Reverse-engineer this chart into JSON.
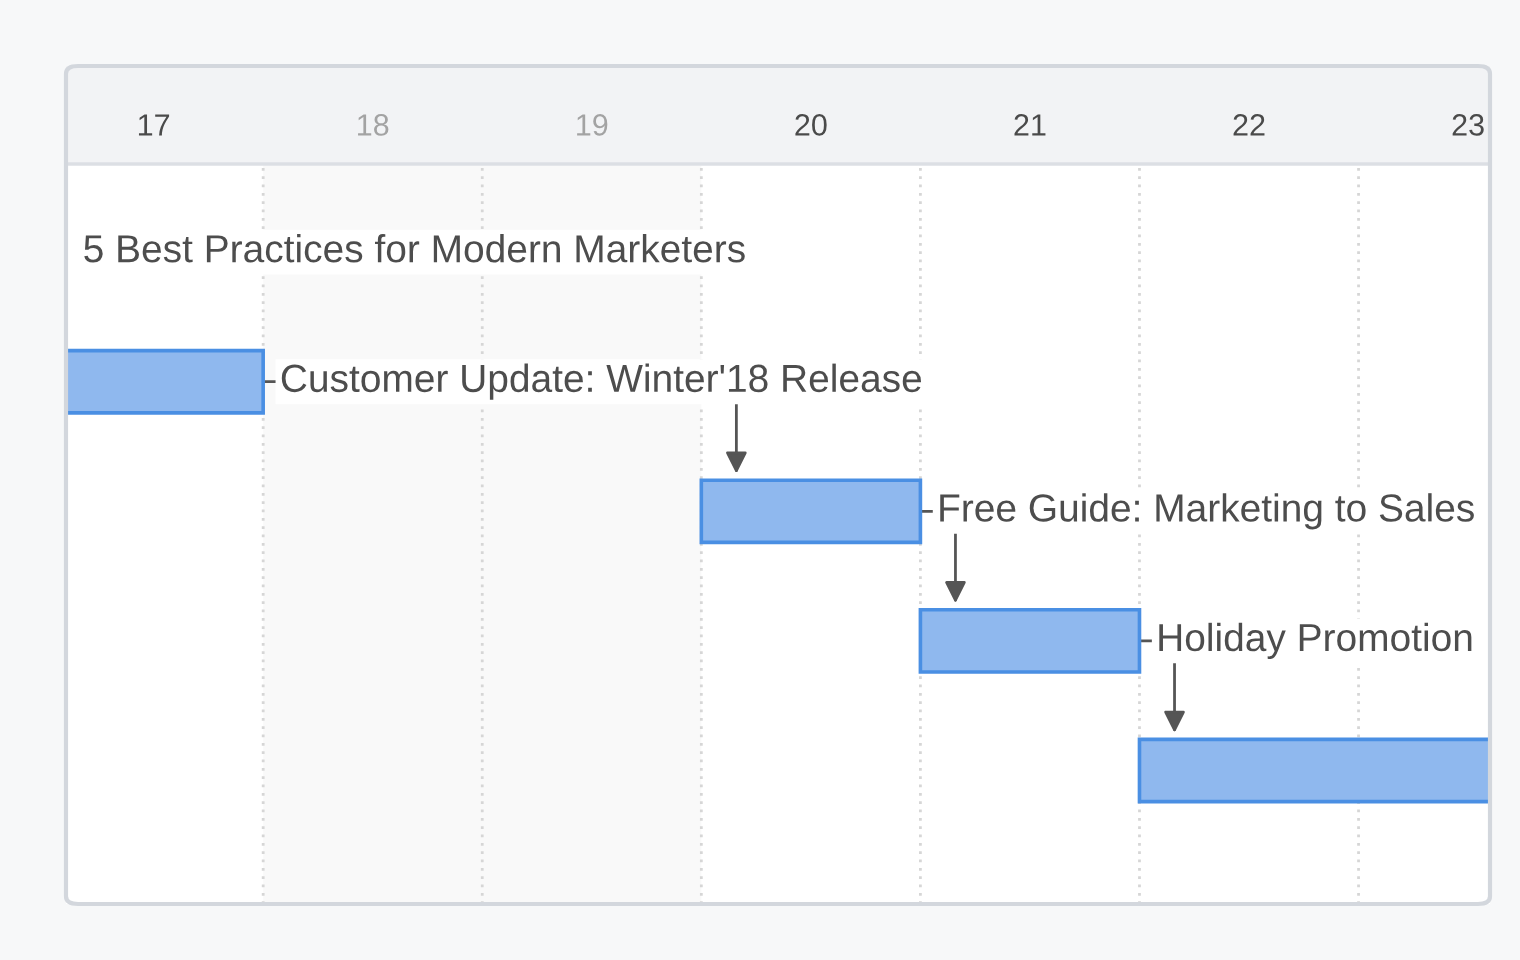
{
  "chart_data": {
    "type": "bar",
    "orientation": "horizontal",
    "categories": [
      "5 Best Practices for Modern Marketers",
      "Customer Update: Winter'18 Release",
      "Free Guide: Marketing to Sales",
      "Holiday Promotion",
      null
    ],
    "base": [
      null,
      16.6,
      19.5,
      20.5,
      21.5
    ],
    "values": [
      null,
      0.9,
      1,
      1,
      1.6
    ],
    "color": "#8fb8ee",
    "xlim": [
      16.6,
      23.1
    ],
    "xticks": [
      17,
      18,
      19,
      20,
      21,
      22,
      23
    ],
    "tick_labels": "x",
    "bands": [
      {
        "axis": "x",
        "from": 17.5,
        "to": 19.5,
        "color": "#f9f9f9"
      }
    ],
    "ref_lines": [
      {
        "axis": "x",
        "value": 17.5,
        "color": "#d6d6d6",
        "line_style": "dotted"
      },
      {
        "axis": "x",
        "value": 18.5,
        "color": "#d6d6d6",
        "line_style": "dotted"
      },
      {
        "axis": "x",
        "value": 19.5,
        "color": "#d6d6d6",
        "line_style": "dotted"
      },
      {
        "axis": "x",
        "value": 20.5,
        "color": "#d6d6d6",
        "line_style": "dotted"
      },
      {
        "axis": "x",
        "value": 21.5,
        "color": "#d6d6d6",
        "line_style": "dotted"
      },
      {
        "axis": "x",
        "value": 22.5,
        "color": "#d6d6d6",
        "line_style": "dotted"
      }
    ]
  }
}
